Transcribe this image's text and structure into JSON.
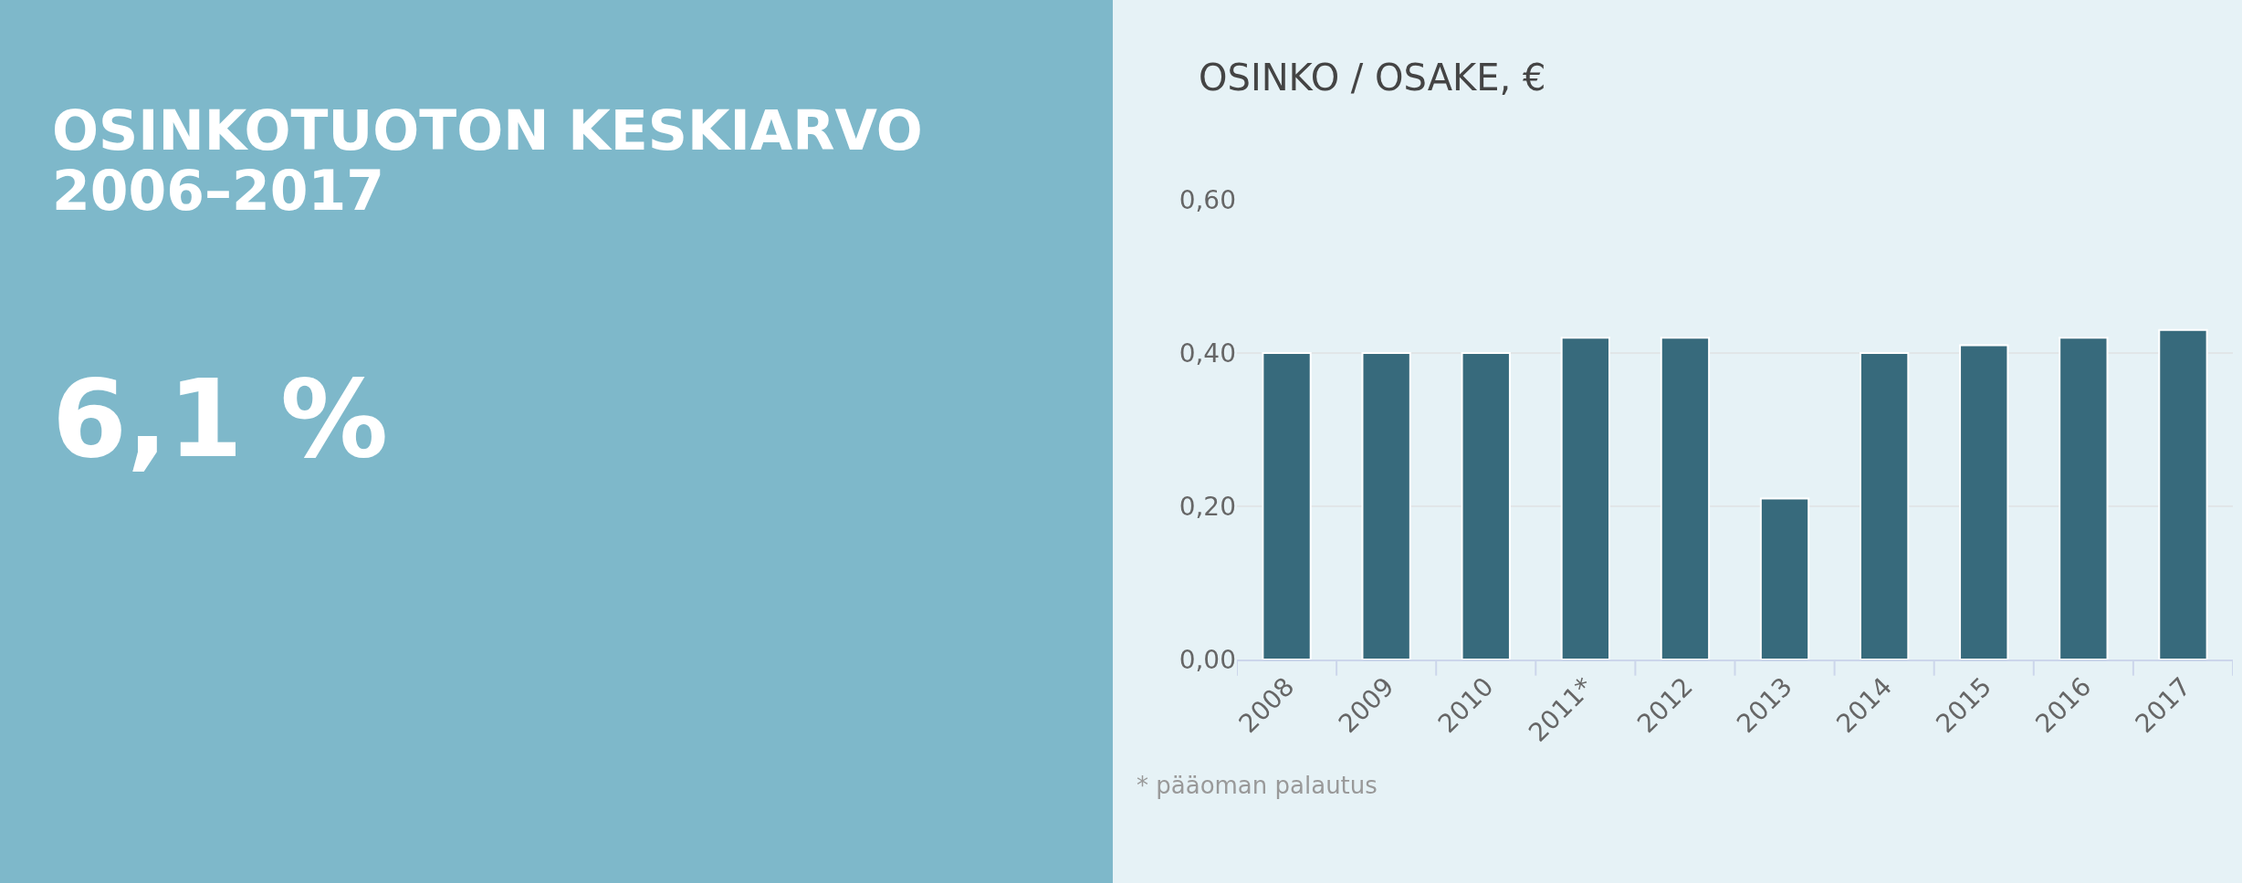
{
  "chart_data": [
    {
      "type": "other",
      "title": "OSINKOTUOTON KESKIARVO 2006–2017",
      "annotations": [
        "6,1 %"
      ]
    },
    {
      "type": "bar",
      "title": "OSINKO / OSAKE, €",
      "categories": [
        "2008",
        "2009",
        "2010",
        "2011*",
        "2012",
        "2013",
        "2014",
        "2015",
        "2016",
        "2017"
      ],
      "values": [
        0.4,
        0.4,
        0.4,
        0.42,
        0.42,
        0.21,
        0.4,
        0.41,
        0.42,
        0.43
      ],
      "color": "#376a7c",
      "ylim": [
        0,
        0.6
      ],
      "yticks": [
        {
          "value": 0,
          "label": "0,00"
        },
        {
          "value": 0.2,
          "label": "0,20"
        },
        {
          "value": 0.4,
          "label": "0,40"
        },
        {
          "value": 0.6,
          "label": "0,60"
        }
      ],
      "grid": "y",
      "annotations": [
        "* pääoman palautus"
      ]
    }
  ]
}
